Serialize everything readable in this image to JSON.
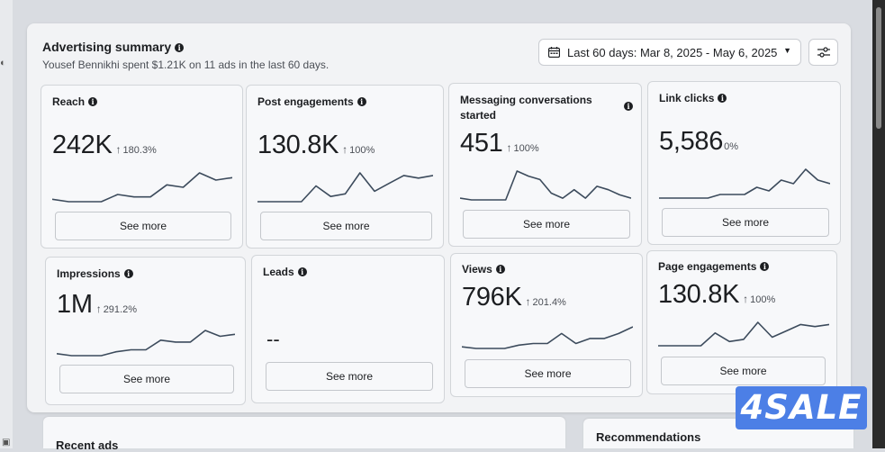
{
  "summary": {
    "title": "Advertising summary",
    "subtitle": "Yousef Bennikhi spent $1.21K on 11 ads in the last 60 days.",
    "date_range": "Last 60 days: Mar 8, 2025 - May 6, 2025"
  },
  "cards": [
    {
      "name": "Reach",
      "value": "242K",
      "delta": "180.3%",
      "see_more": "See more",
      "spark": [
        2,
        1,
        1,
        1,
        4,
        3,
        3,
        8,
        7,
        13,
        10,
        11
      ]
    },
    {
      "name": "Post engagements",
      "value": "130.8K",
      "delta": "100%",
      "see_more": "See more",
      "spark": [
        1,
        1,
        1,
        1,
        7,
        3,
        4,
        12,
        5,
        8,
        11,
        10,
        11
      ]
    },
    {
      "name": "Messaging conversations started",
      "value": "451",
      "delta": "100%",
      "see_more": "See more",
      "spark": [
        1,
        0,
        0,
        0,
        0,
        17,
        14,
        12,
        4,
        1,
        6,
        1,
        8,
        6,
        3,
        1
      ]
    },
    {
      "name": "Link clicks",
      "value": "5,586",
      "delta": "0%",
      "see_more": "See more",
      "spark": [
        1,
        1,
        1,
        1,
        1,
        2,
        2,
        2,
        4,
        3,
        6,
        5,
        9,
        6,
        5
      ]
    },
    {
      "name": "Impressions",
      "value": "1M",
      "delta": "291.2%",
      "see_more": "See more",
      "spark": [
        1,
        0,
        0,
        0,
        2,
        3,
        3,
        8,
        7,
        7,
        13,
        10,
        11
      ]
    },
    {
      "name": "Leads",
      "value": "--",
      "delta": "",
      "see_more": "See more",
      "spark": []
    },
    {
      "name": "Views",
      "value": "796K",
      "delta": "201.4%",
      "see_more": "See more",
      "spark": [
        1,
        0,
        0,
        0,
        2,
        3,
        3,
        9,
        3,
        6,
        6,
        9,
        13
      ]
    },
    {
      "name": "Page engagements",
      "value": "130.8K",
      "delta": "100%",
      "see_more": "See more",
      "spark": [
        1,
        1,
        1,
        1,
        7,
        3,
        4,
        12,
        5,
        8,
        11,
        10,
        11
      ]
    }
  ],
  "bottom": {
    "recent_ads": "Recent ads",
    "recommendations": "Recommendations"
  },
  "watermark": "4SALE",
  "colors": {
    "sparkline": "#3c4b5c",
    "accent": "#4c7fe6"
  }
}
